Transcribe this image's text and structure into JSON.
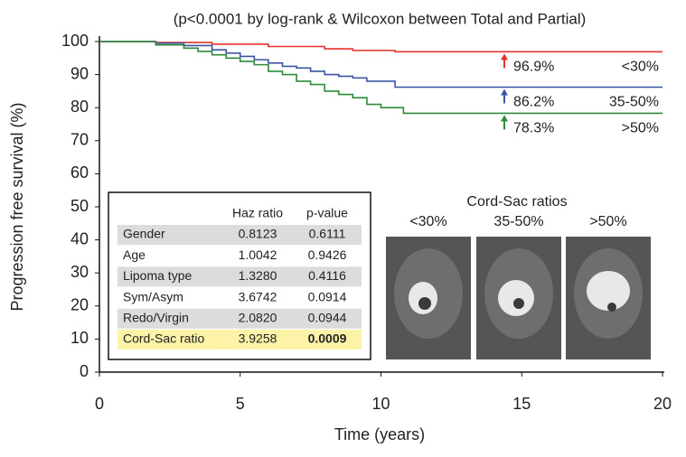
{
  "chart_data": {
    "type": "line",
    "step": true,
    "title": "(p<0.0001 by log-rank & Wilcoxon between Total and Partial)",
    "xlabel": "Time (years)",
    "ylabel": "Progression free survival (%)",
    "xlim": [
      0,
      20
    ],
    "xticks": [
      0,
      5,
      10,
      15,
      20
    ],
    "ylim": [
      0,
      100
    ],
    "yticks": [
      0,
      10,
      20,
      30,
      40,
      50,
      60,
      70,
      80,
      90,
      100
    ],
    "series": [
      {
        "name": "<30%",
        "color": "#e8302a",
        "end_label": "96.9%",
        "x": [
          0,
          2,
          4,
          6,
          8,
          9,
          10.5,
          20
        ],
        "values": [
          100,
          99.7,
          99.2,
          98.5,
          97.8,
          97.3,
          96.9,
          96.9
        ]
      },
      {
        "name": "35-50%",
        "color": "#3a55a4",
        "end_label": "86.2%",
        "x": [
          0,
          2,
          3,
          4,
          4.5,
          5,
          5.5,
          6,
          6.5,
          7,
          7.5,
          8,
          8.5,
          9,
          9.5,
          10.5,
          20
        ],
        "values": [
          100,
          99.5,
          98.8,
          97.5,
          96.5,
          95.5,
          94.5,
          93.5,
          92.5,
          92,
          91,
          90,
          89.5,
          89,
          88,
          86.2,
          86.2
        ]
      },
      {
        "name": ">50%",
        "color": "#2f8a3a",
        "end_label": "78.3%",
        "x": [
          0,
          2,
          3,
          3.5,
          4,
          4.5,
          5,
          5.5,
          6,
          6.5,
          7,
          7.5,
          8,
          8.5,
          9,
          9.5,
          10,
          10.8,
          20
        ],
        "values": [
          100,
          99,
          98,
          97,
          96,
          95,
          94,
          93,
          91,
          90,
          88,
          87,
          85,
          84,
          83,
          81,
          80,
          78.3,
          78.3
        ]
      }
    ],
    "table": {
      "header": [
        "Haz ratio",
        "p-value"
      ],
      "rows": [
        [
          "Gender",
          "0.8123",
          "0.6111"
        ],
        [
          "Age",
          "1.0042",
          "0.9426"
        ],
        [
          "Lipoma type",
          "1.3280",
          "0.4116"
        ],
        [
          "Sym/Asym",
          "3.6742",
          "0.0914"
        ],
        [
          "Redo/Virgin",
          "2.0820",
          "0.0944"
        ],
        [
          "Cord-Sac ratio",
          "3.9258",
          "0.0009"
        ]
      ]
    },
    "inset_title": "Cord-Sac ratios"
  }
}
